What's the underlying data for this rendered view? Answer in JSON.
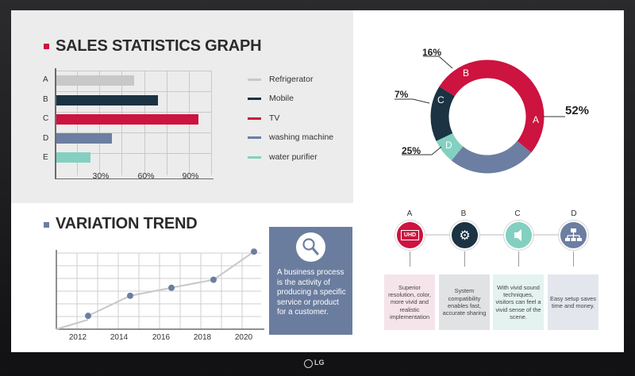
{
  "sales": {
    "title": "SALES STATISTICS GRAPH",
    "chart_data": {
      "type": "bar",
      "orientation": "horizontal",
      "categories": [
        "A",
        "B",
        "C",
        "D",
        "E"
      ],
      "values": [
        52,
        68,
        95,
        37,
        23
      ],
      "colors": [
        "#c8c8c8",
        "#1b3343",
        "#cd1340",
        "#6c7ea1",
        "#83d0c0"
      ],
      "xticks": [
        "30%",
        "60%",
        "90%"
      ],
      "xlim": [
        0,
        105
      ],
      "grid": true
    },
    "legend": [
      {
        "label": "Refrigerator",
        "color": "#c8c8c8"
      },
      {
        "label": "Mobile",
        "color": "#1b3343"
      },
      {
        "label": "TV",
        "color": "#cd1340"
      },
      {
        "label": "washing machine",
        "color": "#6c7ea1"
      },
      {
        "label": "water purifier",
        "color": "#83d0c0"
      }
    ]
  },
  "share": {
    "chart_data": {
      "type": "pie",
      "style": "donut",
      "slices": [
        {
          "label": "A",
          "value": 52,
          "display": "52%",
          "color": "#cd1340"
        },
        {
          "label": "D",
          "value": 25,
          "display": "25%",
          "color": "#6c7ea1"
        },
        {
          "label": "C",
          "value": 7,
          "display": "7%",
          "color": "#83d0c0"
        },
        {
          "label": "B",
          "value": 16,
          "display": "16%",
          "color": "#1b3343"
        }
      ]
    }
  },
  "trend": {
    "title": "VARIATION TREND",
    "chart_data": {
      "type": "line",
      "x": [
        "2012",
        "2014",
        "2016",
        "2018",
        "2020"
      ],
      "values": [
        10,
        25,
        31,
        37,
        58
      ],
      "ylim": [
        0,
        70
      ],
      "grid": true,
      "color": "#c8c8c8",
      "marker_color": "#6c7ea1"
    }
  },
  "business": {
    "text": "A business process is the activity of producing a specific service or product for a customer.",
    "icon": "magnifier-icon"
  },
  "features": [
    {
      "letter": "A",
      "icon": "uhd-icon",
      "icon_text": "UHD",
      "color": "#cd1340",
      "card_bg": "#f5e4ea",
      "text": "Superior resolution, color, more vivid and realistic implementation"
    },
    {
      "letter": "B",
      "icon": "gear-icon",
      "color": "#1b3343",
      "card_bg": "#e0e2e4",
      "text": "System compatibility enables fast, accurate sharing"
    },
    {
      "letter": "C",
      "icon": "speaker-icon",
      "color": "#83d0c0",
      "card_bg": "#e4f3ef",
      "text": "With vivid sound techniques, visitors can feel a vivid sense of the scene."
    },
    {
      "letter": "D",
      "icon": "network-icon",
      "color": "#6c7ea1",
      "card_bg": "#e3e6ed",
      "text": "Easy setup saves time and money."
    }
  ],
  "brand": {
    "logo": "LG"
  }
}
